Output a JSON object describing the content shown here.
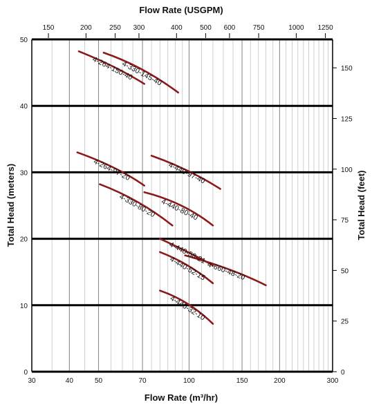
{
  "chart_data": {
    "type": "line",
    "x_axis_bottom": {
      "label": "Flow Rate (m³/hr)",
      "scale": "log",
      "range": [
        30,
        300
      ],
      "ticks": [
        30,
        40,
        50,
        70,
        100,
        150,
        200,
        300
      ]
    },
    "x_axis_top": {
      "label": "Flow Rate (USGPM)",
      "scale": "log",
      "ticks": [
        150,
        200,
        250,
        300,
        400,
        500,
        600,
        750,
        1000,
        1250
      ]
    },
    "y_axis_left": {
      "label": "Total Head (meters)",
      "range": [
        0,
        50
      ],
      "ticks": [
        0,
        10,
        20,
        30,
        40,
        50
      ]
    },
    "y_axis_right": {
      "label": "Total Head (feet)",
      "ticks": [
        0,
        25,
        50,
        75,
        100,
        125,
        150
      ]
    },
    "grid": true,
    "line_color": "#8b1a1a",
    "series": [
      {
        "name": "4-330-145-40",
        "x": [
          52,
          70,
          92
        ],
        "y": [
          48,
          46,
          42
        ]
      },
      {
        "name": "4-264-150-40",
        "x": [
          43,
          57,
          71
        ],
        "y": [
          48.2,
          46,
          43.3
        ]
      },
      {
        "name": "4-264-97-20",
        "x": [
          42.5,
          58,
          71
        ],
        "y": [
          33,
          30.8,
          28
        ]
      },
      {
        "name": "4-440-97-40",
        "x": [
          75,
          100,
          127
        ],
        "y": [
          32.5,
          30.5,
          27.5
        ]
      },
      {
        "name": "4-330-80-20",
        "x": [
          50.5,
          68,
          88
        ],
        "y": [
          28.2,
          26,
          22
        ]
      },
      {
        "name": "4-440-80-40",
        "x": [
          71,
          96,
          120
        ],
        "y": [
          27,
          25.5,
          22
        ]
      },
      {
        "name": "4-440-58-21",
        "x": [
          80,
          100,
          120
        ],
        "y": [
          20,
          18,
          16
        ]
      },
      {
        "name": "4-660-48-20",
        "x": [
          97,
          140,
          180
        ],
        "y": [
          17.5,
          15.5,
          13
        ]
      },
      {
        "name": "4-440-52-15",
        "x": [
          80,
          100,
          120
        ],
        "y": [
          18,
          16.3,
          13.3
        ]
      },
      {
        "name": "4-440-32-10",
        "x": [
          80,
          100,
          120
        ],
        "y": [
          12.2,
          10.7,
          7.2
        ]
      }
    ]
  }
}
